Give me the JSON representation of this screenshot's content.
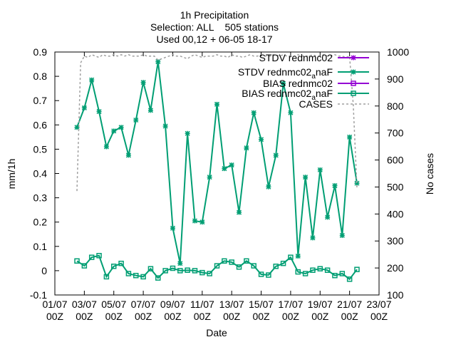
{
  "chart_data": {
    "type": "line",
    "title": [
      "1h Precipitation",
      "Selection: ALL    505 stations",
      "Used 00,12 + 06-05 18-17"
    ],
    "xlabel": "Date",
    "ylabel": "mm/1h",
    "y2label": "No cases",
    "xlim": [
      1,
      23
    ],
    "ylim": [
      -0.1,
      0.9
    ],
    "y2lim": [
      100,
      1000
    ],
    "x_ticks": [
      {
        "x": 1,
        "label": [
          "01/07",
          "00Z"
        ]
      },
      {
        "x": 3,
        "label": [
          "03/07",
          "00Z"
        ]
      },
      {
        "x": 5,
        "label": [
          "05/07",
          "00Z"
        ]
      },
      {
        "x": 7,
        "label": [
          "07/07",
          "00Z"
        ]
      },
      {
        "x": 9,
        "label": [
          "09/07",
          "00Z"
        ]
      },
      {
        "x": 11,
        "label": [
          "11/07",
          "00Z"
        ]
      },
      {
        "x": 13,
        "label": [
          "13/07",
          "00Z"
        ]
      },
      {
        "x": 15,
        "label": [
          "15/07",
          "00Z"
        ]
      },
      {
        "x": 17,
        "label": [
          "17/07",
          "00Z"
        ]
      },
      {
        "x": 19,
        "label": [
          "19/07",
          "00Z"
        ]
      },
      {
        "x": 21,
        "label": [
          "21/07",
          "00Z"
        ]
      },
      {
        "x": 23,
        "label": [
          "23/07",
          "00Z"
        ]
      }
    ],
    "y_ticks": [
      -0.1,
      0,
      0.1,
      0.2,
      0.3,
      0.4,
      0.5,
      0.6,
      0.7,
      0.8,
      0.9
    ],
    "y_tick_labels": [
      "-0.1",
      "0",
      "0.1",
      "0.2",
      "0.3",
      "0.4",
      "0.5",
      "0.6",
      "0.7",
      "0.8",
      "0.9"
    ],
    "y2_ticks": [
      100,
      200,
      300,
      400,
      500,
      600,
      700,
      800,
      900,
      1000
    ],
    "y2_tick_labels": [
      "100",
      "200",
      "300",
      "400",
      "500",
      "600",
      "700",
      "800",
      "900",
      "1000"
    ],
    "grid": false,
    "legend_position": "top-right",
    "series": [
      {
        "name": "STDV rednmc02",
        "axis": "y",
        "color": "#9400d3",
        "marker": "star",
        "x": [],
        "values": []
      },
      {
        "name_parts": [
          "STDV rednmc02",
          "a",
          "naF"
        ],
        "axis": "y",
        "color": "#009e73",
        "marker": "star",
        "x": [
          2.5,
          3,
          3.5,
          4,
          4.5,
          5,
          5.5,
          6,
          6.5,
          7,
          7.5,
          8,
          8.5,
          9,
          9.5,
          10,
          10.5,
          11,
          11.5,
          12,
          12.5,
          13,
          13.5,
          14,
          14.5,
          15,
          15.5,
          16,
          16.5,
          17,
          17.5,
          18,
          18.5,
          19,
          19.5,
          20,
          20.5,
          21,
          21.5
        ],
        "values": [
          0.59,
          0.67,
          0.785,
          0.655,
          0.51,
          0.575,
          0.59,
          0.475,
          0.62,
          0.775,
          0.66,
          0.86,
          0.595,
          0.175,
          0.03,
          0.565,
          0.205,
          0.2,
          0.385,
          0.685,
          0.42,
          0.435,
          0.24,
          0.505,
          0.65,
          0.54,
          0.345,
          0.475,
          0.77,
          0.65,
          0.06,
          0.385,
          0.135,
          0.415,
          0.22,
          0.35,
          0.145,
          0.55,
          0.36
        ]
      },
      {
        "name": "BIAS rednmc02",
        "axis": "y",
        "color": "#9400d3",
        "marker": "square",
        "x": [],
        "values": []
      },
      {
        "name_parts": [
          "BIAS rednmc02",
          "a",
          "naF"
        ],
        "axis": "y",
        "color": "#009e73",
        "marker": "square",
        "x": [
          2.5,
          3,
          3.5,
          4,
          4.5,
          5,
          5.5,
          6,
          6.5,
          7,
          7.5,
          8,
          8.5,
          9,
          9.5,
          10,
          10.5,
          11,
          11.5,
          12,
          12.5,
          13,
          13.5,
          14,
          14.5,
          15,
          15.5,
          16,
          16.5,
          17,
          17.5,
          18,
          18.5,
          19,
          19.5,
          20,
          20.5,
          21,
          21.5
        ],
        "values": [
          0.04,
          0.02,
          0.055,
          0.062,
          -0.025,
          0.018,
          0.03,
          -0.012,
          -0.02,
          -0.025,
          0.008,
          -0.03,
          0.0,
          0.01,
          0.0,
          0.002,
          0.0,
          -0.008,
          -0.012,
          0.02,
          0.04,
          0.035,
          0.015,
          0.04,
          0.02,
          -0.015,
          -0.018,
          0.018,
          0.03,
          0.055,
          -0.005,
          -0.012,
          0.002,
          0.008,
          0.002,
          -0.02,
          -0.012,
          -0.035,
          0.005
        ]
      },
      {
        "name": "CASES",
        "axis": "y2",
        "color": "#a0a0a0",
        "marker": "none",
        "dash": true,
        "x": [
          2.5,
          2.75,
          3,
          3.25,
          3.5,
          3.75,
          4,
          4.25,
          4.5,
          4.75,
          5,
          5.25,
          5.5,
          5.75,
          6,
          6.25,
          6.5,
          6.75,
          7,
          7.25,
          7.5,
          7.75,
          8,
          8.25,
          8.5,
          8.75,
          9,
          9.25,
          9.5,
          9.75,
          10,
          10.25,
          10.5,
          10.75,
          11,
          11.25,
          11.5,
          11.75,
          12,
          12.25,
          12.5,
          12.75,
          13,
          13.25,
          13.5,
          13.75,
          14,
          14.25,
          14.5,
          14.75,
          15,
          15.25,
          15.5,
          15.75,
          16,
          16.25,
          16.5,
          16.75,
          17,
          17.25,
          17.5,
          17.75,
          18,
          18.25,
          18.5,
          18.75,
          19,
          19.25,
          19.5,
          19.75,
          20,
          20.25,
          20.5,
          20.75,
          21,
          21.25,
          21.5
        ],
        "values": [
          485,
          960,
          985,
          980,
          990,
          985,
          980,
          990,
          985,
          985,
          990,
          985,
          990,
          985,
          990,
          985,
          985,
          985,
          990,
          985,
          985,
          985,
          970,
          975,
          980,
          985,
          990,
          985,
          985,
          980,
          975,
          985,
          990,
          985,
          980,
          985,
          985,
          985,
          990,
          985,
          985,
          980,
          990,
          985,
          985,
          980,
          985,
          990,
          985,
          985,
          990,
          985,
          985,
          985,
          990,
          985,
          990,
          985,
          985,
          985,
          990,
          985,
          985,
          985,
          990,
          985,
          985,
          990,
          985,
          985,
          990,
          985,
          985,
          980,
          985,
          805,
          495
        ]
      }
    ]
  }
}
